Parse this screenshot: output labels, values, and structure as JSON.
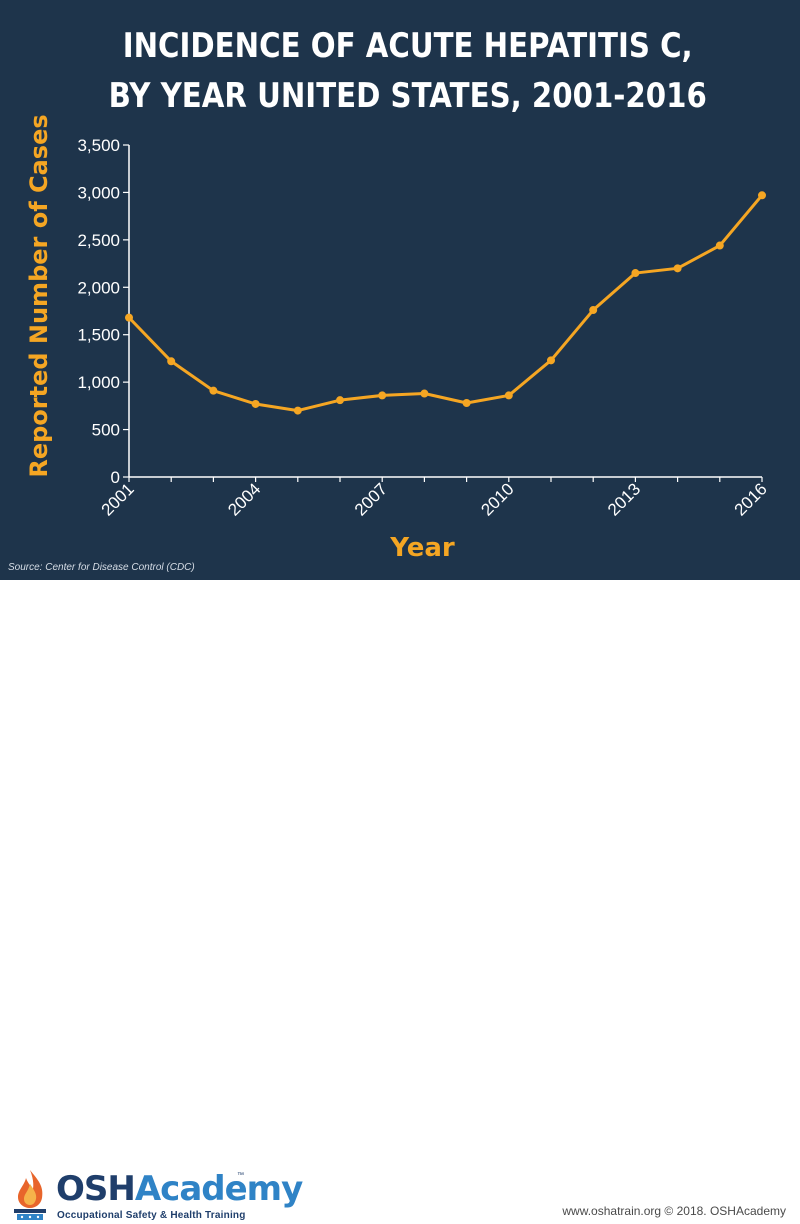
{
  "title_lines": [
    "INCIDENCE OF ACUTE HEPATITIS C,",
    "BY YEAR UNITED STATES, 2001-2016"
  ],
  "source": "Source: Center for Disease Control (CDC)",
  "footer": {
    "logo": {
      "wordmark_osh": "OSH",
      "wordmark_academy": "Academy",
      "tm": "™",
      "tagline": "Occupational Safety & Health Training"
    },
    "copyright": "www.oshatrain.org © 2018. OSHAcademy"
  },
  "colors": {
    "background": "#1e344b",
    "line": "#f5a623",
    "text": "#ffffff",
    "accent_label": "#f5a623"
  },
  "chart_data": {
    "type": "line",
    "title": "INCIDENCE OF ACUTE HEPATITIS C, BY YEAR UNITED STATES, 2001-2016",
    "xlabel": "Year",
    "ylabel": "Reported Number of Cases",
    "x": [
      2001,
      2002,
      2003,
      2004,
      2005,
      2006,
      2007,
      2008,
      2009,
      2010,
      2011,
      2012,
      2013,
      2014,
      2015,
      2016
    ],
    "series": [
      {
        "values": [
          1680,
          1220,
          910,
          770,
          700,
          810,
          860,
          880,
          780,
          860,
          1230,
          1760,
          2150,
          2200,
          2440,
          2970
        ]
      }
    ],
    "xticks": [
      "2001",
      "2004",
      "2007",
      "2010",
      "2013",
      "2016"
    ],
    "yticks": [
      "0",
      "500",
      "1,000",
      "1,500",
      "2,000",
      "2,500",
      "3,000",
      "3,500"
    ],
    "ylim": [
      0,
      3500
    ],
    "xlim": [
      2001,
      2016
    ],
    "grid": false,
    "legend": "none"
  }
}
